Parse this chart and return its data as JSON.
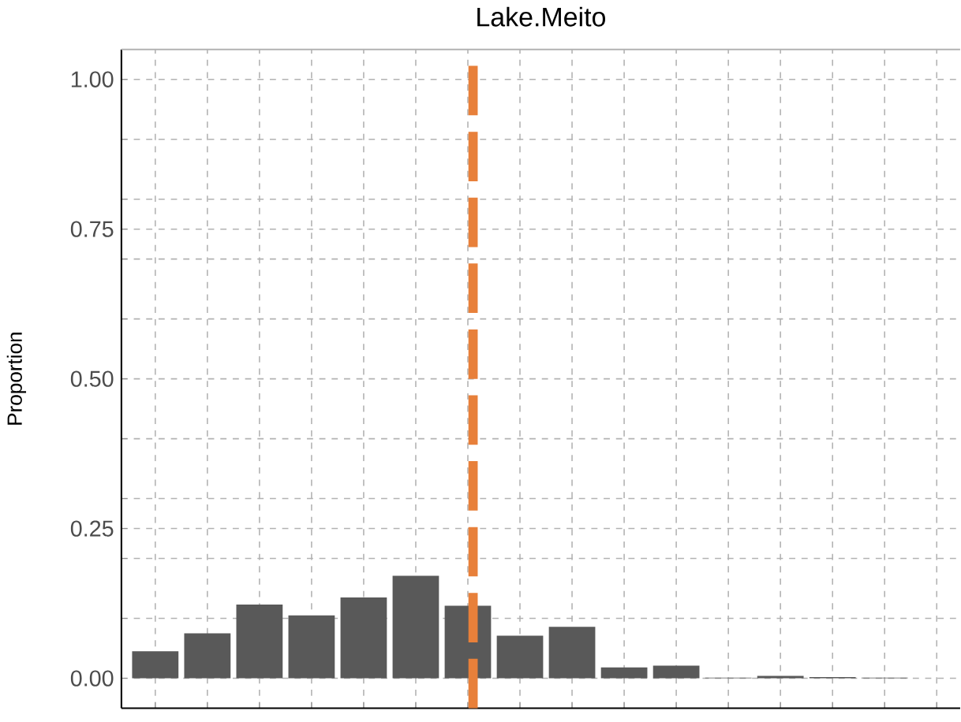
{
  "chart_data": {
    "type": "bar",
    "title": "Lake.Meito",
    "ylabel": "Proportion",
    "categories": [
      null,
      null,
      null,
      null,
      null,
      null,
      null,
      null,
      null,
      null,
      null,
      null,
      null,
      null,
      null,
      null
    ],
    "values": [
      0.045,
      0.075,
      0.123,
      0.105,
      0.135,
      0.171,
      0.121,
      0.071,
      0.086,
      0.018,
      0.021,
      0.001,
      0.004,
      0.002,
      0.001,
      null
    ],
    "color": "#595959",
    "ylim": [
      -0.05,
      1.05
    ],
    "yticks": [
      {
        "value": 0,
        "label": "0.00"
      },
      {
        "value": 0.1,
        "label": null
      },
      {
        "value": 0.2,
        "label": null
      },
      0.25,
      {
        "value": 0.3,
        "label": null
      },
      {
        "value": 0.4,
        "label": null
      },
      {
        "value": 0.5,
        "label": "0.50"
      },
      {
        "value": 0.6,
        "label": null
      },
      {
        "value": 0.7,
        "label": null
      },
      0.75,
      {
        "value": 0.8,
        "label": null
      },
      {
        "value": 0.9,
        "label": null
      },
      {
        "value": 1,
        "label": "1.00"
      }
    ],
    "grid": true
  }
}
